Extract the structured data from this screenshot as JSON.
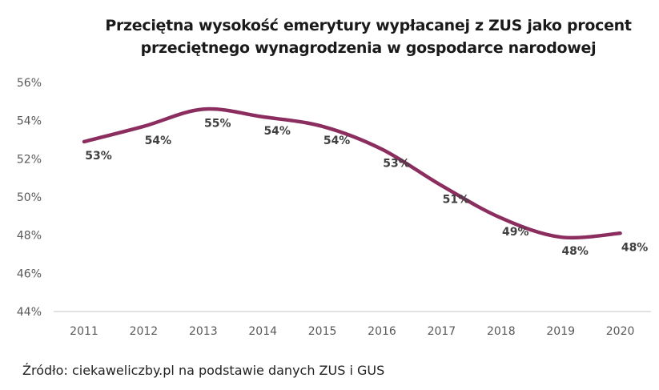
{
  "chart_data": {
    "type": "line",
    "title": "Przeciętna wysokość emerytury wypłacanej z ZUS jako procent przeciętnego wynagrodzenia w gospodarce narodowej",
    "title_lines": [
      "Przeciętna wysokość emerytury wypłacanej z ZUS jako procent",
      "przeciętnego wynagrodzenia w gospodarce narodowej"
    ],
    "categories": [
      "2011",
      "2012",
      "2013",
      "2014",
      "2015",
      "2016",
      "2017",
      "2018",
      "2019",
      "2020"
    ],
    "series": [
      {
        "values": [
          52.9,
          53.7,
          54.6,
          54.2,
          53.7,
          52.5,
          50.6,
          48.9,
          47.9,
          48.1
        ],
        "data_labels": [
          "53%",
          "54%",
          "55%",
          "54%",
          "54%",
          "53%",
          "51%",
          "49%",
          "48%",
          "48%"
        ],
        "color": "#8b2d5e",
        "smooth": true
      }
    ],
    "ylim": [
      44,
      56
    ],
    "yticks": [
      "44%",
      "46%",
      "48%",
      "50%",
      "52%",
      "54%",
      "56%"
    ],
    "grid": false,
    "xlabel": "",
    "ylabel": ""
  },
  "source": "Źródło: ciekaweliczby.pl na podstawie danych ZUS i GUS"
}
